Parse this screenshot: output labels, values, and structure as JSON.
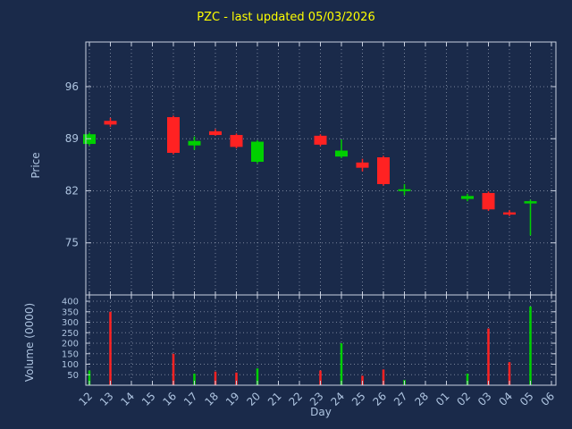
{
  "chart_data": {
    "type": "candlestick",
    "title": "PZC - last updated 05/03/2026",
    "xlabel": "Day",
    "price_axis": {
      "label": "Price",
      "ticks": [
        75,
        82,
        89,
        96
      ],
      "range": [
        68,
        102
      ]
    },
    "volume_axis": {
      "label": "Volume (0000)",
      "ticks": [
        50,
        100,
        150,
        200,
        250,
        300,
        350,
        400
      ],
      "range": [
        0,
        430
      ]
    },
    "x_labels": [
      "12",
      "13",
      "14",
      "15",
      "16",
      "17",
      "18",
      "19",
      "20",
      "21",
      "22",
      "23",
      "24",
      "25",
      "26",
      "27",
      "28",
      "01",
      "02",
      "03",
      "04",
      "05",
      "06"
    ],
    "grid": true,
    "candles": [
      {
        "day": "12",
        "open": 88.3,
        "high": 89.8,
        "low": 88.1,
        "close": 89.6,
        "volume": 70
      },
      {
        "day": "13",
        "open": 91.4,
        "high": 91.8,
        "low": 90.6,
        "close": 90.9,
        "volume": 350
      },
      {
        "day": "16",
        "open": 91.9,
        "high": 92.1,
        "low": 86.9,
        "close": 87.1,
        "volume": 150
      },
      {
        "day": "17",
        "open": 88.1,
        "high": 89.3,
        "low": 87.5,
        "close": 88.7,
        "volume": 55
      },
      {
        "day": "18",
        "open": 90.0,
        "high": 90.3,
        "low": 89.4,
        "close": 89.5,
        "volume": 65
      },
      {
        "day": "19",
        "open": 89.5,
        "high": 89.7,
        "low": 87.7,
        "close": 87.9,
        "volume": 60
      },
      {
        "day": "20",
        "open": 85.9,
        "high": 88.8,
        "low": 85.7,
        "close": 88.6,
        "volume": 80
      },
      {
        "day": "23",
        "open": 89.4,
        "high": 89.6,
        "low": 88.0,
        "close": 88.2,
        "volume": 70
      },
      {
        "day": "24",
        "open": 86.6,
        "high": 88.9,
        "low": 86.4,
        "close": 87.4,
        "volume": 200
      },
      {
        "day": "25",
        "open": 85.8,
        "high": 86.3,
        "low": 84.6,
        "close": 85.1,
        "volume": 45
      },
      {
        "day": "26",
        "open": 86.5,
        "high": 86.7,
        "low": 82.7,
        "close": 82.9,
        "volume": 75
      },
      {
        "day": "27",
        "open": 82.0,
        "high": 82.9,
        "low": 81.4,
        "close": 82.2,
        "volume": 25
      },
      {
        "day": "02",
        "open": 80.9,
        "high": 81.6,
        "low": 80.6,
        "close": 81.3,
        "volume": 55
      },
      {
        "day": "03",
        "open": 81.7,
        "high": 81.9,
        "low": 79.3,
        "close": 79.5,
        "volume": 270
      },
      {
        "day": "04",
        "open": 79.1,
        "high": 79.4,
        "low": 78.6,
        "close": 78.8,
        "volume": 110
      },
      {
        "day": "05",
        "open": 80.3,
        "high": 80.8,
        "low": 76.0,
        "close": 80.6,
        "volume": 375
      }
    ],
    "colors": {
      "background": "#1a2a4a",
      "up": "#00d000",
      "down": "#ff2222",
      "grid": "#c4ccdc",
      "spine": "#c8d0e0",
      "text": "#aec4e0",
      "title": "#ffff00"
    }
  }
}
